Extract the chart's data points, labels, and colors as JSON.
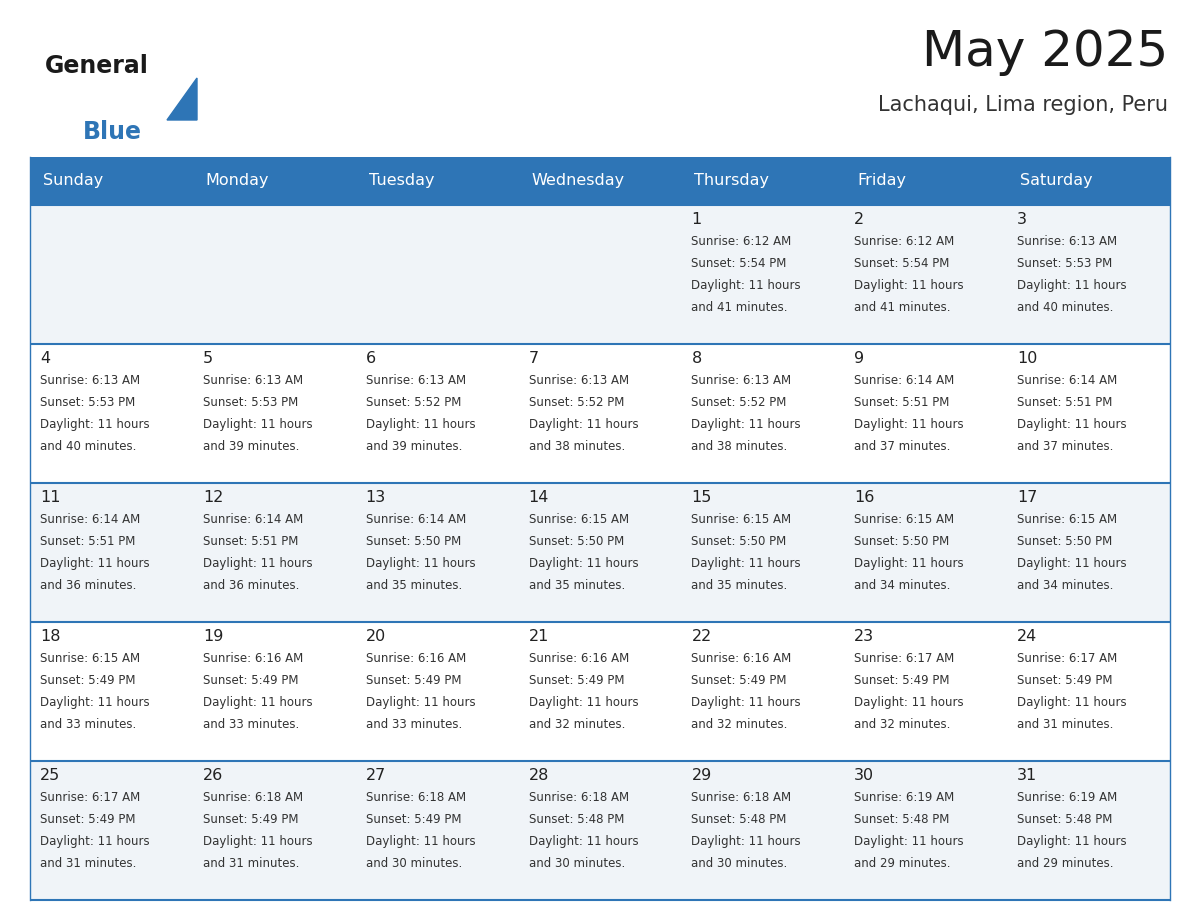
{
  "title": "May 2025",
  "subtitle": "Lachaqui, Lima region, Peru",
  "days_of_week": [
    "Sunday",
    "Monday",
    "Tuesday",
    "Wednesday",
    "Thursday",
    "Friday",
    "Saturday"
  ],
  "header_bg_color": "#2E75B6",
  "header_text_color": "#FFFFFF",
  "cell_bg_even": "#F0F4F8",
  "cell_bg_odd": "#FFFFFF",
  "cell_text_color": "#333333",
  "day_number_color": "#222222",
  "border_color": "#2E75B6",
  "divider_color": "#2E75B6",
  "title_color": "#1a1a1a",
  "subtitle_color": "#333333",
  "calendar": [
    [
      {
        "day": null,
        "sunrise": null,
        "sunset": null,
        "daylight_hours": null,
        "daylight_minutes": null
      },
      {
        "day": null,
        "sunrise": null,
        "sunset": null,
        "daylight_hours": null,
        "daylight_minutes": null
      },
      {
        "day": null,
        "sunrise": null,
        "sunset": null,
        "daylight_hours": null,
        "daylight_minutes": null
      },
      {
        "day": null,
        "sunrise": null,
        "sunset": null,
        "daylight_hours": null,
        "daylight_minutes": null
      },
      {
        "day": 1,
        "sunrise": "6:12 AM",
        "sunset": "5:54 PM",
        "daylight_hours": "11 hours",
        "daylight_minutes": "and 41 minutes."
      },
      {
        "day": 2,
        "sunrise": "6:12 AM",
        "sunset": "5:54 PM",
        "daylight_hours": "11 hours",
        "daylight_minutes": "and 41 minutes."
      },
      {
        "day": 3,
        "sunrise": "6:13 AM",
        "sunset": "5:53 PM",
        "daylight_hours": "11 hours",
        "daylight_minutes": "and 40 minutes."
      }
    ],
    [
      {
        "day": 4,
        "sunrise": "6:13 AM",
        "sunset": "5:53 PM",
        "daylight_hours": "11 hours",
        "daylight_minutes": "and 40 minutes."
      },
      {
        "day": 5,
        "sunrise": "6:13 AM",
        "sunset": "5:53 PM",
        "daylight_hours": "11 hours",
        "daylight_minutes": "and 39 minutes."
      },
      {
        "day": 6,
        "sunrise": "6:13 AM",
        "sunset": "5:52 PM",
        "daylight_hours": "11 hours",
        "daylight_minutes": "and 39 minutes."
      },
      {
        "day": 7,
        "sunrise": "6:13 AM",
        "sunset": "5:52 PM",
        "daylight_hours": "11 hours",
        "daylight_minutes": "and 38 minutes."
      },
      {
        "day": 8,
        "sunrise": "6:13 AM",
        "sunset": "5:52 PM",
        "daylight_hours": "11 hours",
        "daylight_minutes": "and 38 minutes."
      },
      {
        "day": 9,
        "sunrise": "6:14 AM",
        "sunset": "5:51 PM",
        "daylight_hours": "11 hours",
        "daylight_minutes": "and 37 minutes."
      },
      {
        "day": 10,
        "sunrise": "6:14 AM",
        "sunset": "5:51 PM",
        "daylight_hours": "11 hours",
        "daylight_minutes": "and 37 minutes."
      }
    ],
    [
      {
        "day": 11,
        "sunrise": "6:14 AM",
        "sunset": "5:51 PM",
        "daylight_hours": "11 hours",
        "daylight_minutes": "and 36 minutes."
      },
      {
        "day": 12,
        "sunrise": "6:14 AM",
        "sunset": "5:51 PM",
        "daylight_hours": "11 hours",
        "daylight_minutes": "and 36 minutes."
      },
      {
        "day": 13,
        "sunrise": "6:14 AM",
        "sunset": "5:50 PM",
        "daylight_hours": "11 hours",
        "daylight_minutes": "and 35 minutes."
      },
      {
        "day": 14,
        "sunrise": "6:15 AM",
        "sunset": "5:50 PM",
        "daylight_hours": "11 hours",
        "daylight_minutes": "and 35 minutes."
      },
      {
        "day": 15,
        "sunrise": "6:15 AM",
        "sunset": "5:50 PM",
        "daylight_hours": "11 hours",
        "daylight_minutes": "and 35 minutes."
      },
      {
        "day": 16,
        "sunrise": "6:15 AM",
        "sunset": "5:50 PM",
        "daylight_hours": "11 hours",
        "daylight_minutes": "and 34 minutes."
      },
      {
        "day": 17,
        "sunrise": "6:15 AM",
        "sunset": "5:50 PM",
        "daylight_hours": "11 hours",
        "daylight_minutes": "and 34 minutes."
      }
    ],
    [
      {
        "day": 18,
        "sunrise": "6:15 AM",
        "sunset": "5:49 PM",
        "daylight_hours": "11 hours",
        "daylight_minutes": "and 33 minutes."
      },
      {
        "day": 19,
        "sunrise": "6:16 AM",
        "sunset": "5:49 PM",
        "daylight_hours": "11 hours",
        "daylight_minutes": "and 33 minutes."
      },
      {
        "day": 20,
        "sunrise": "6:16 AM",
        "sunset": "5:49 PM",
        "daylight_hours": "11 hours",
        "daylight_minutes": "and 33 minutes."
      },
      {
        "day": 21,
        "sunrise": "6:16 AM",
        "sunset": "5:49 PM",
        "daylight_hours": "11 hours",
        "daylight_minutes": "and 32 minutes."
      },
      {
        "day": 22,
        "sunrise": "6:16 AM",
        "sunset": "5:49 PM",
        "daylight_hours": "11 hours",
        "daylight_minutes": "and 32 minutes."
      },
      {
        "day": 23,
        "sunrise": "6:17 AM",
        "sunset": "5:49 PM",
        "daylight_hours": "11 hours",
        "daylight_minutes": "and 32 minutes."
      },
      {
        "day": 24,
        "sunrise": "6:17 AM",
        "sunset": "5:49 PM",
        "daylight_hours": "11 hours",
        "daylight_minutes": "and 31 minutes."
      }
    ],
    [
      {
        "day": 25,
        "sunrise": "6:17 AM",
        "sunset": "5:49 PM",
        "daylight_hours": "11 hours",
        "daylight_minutes": "and 31 minutes."
      },
      {
        "day": 26,
        "sunrise": "6:18 AM",
        "sunset": "5:49 PM",
        "daylight_hours": "11 hours",
        "daylight_minutes": "and 31 minutes."
      },
      {
        "day": 27,
        "sunrise": "6:18 AM",
        "sunset": "5:49 PM",
        "daylight_hours": "11 hours",
        "daylight_minutes": "and 30 minutes."
      },
      {
        "day": 28,
        "sunrise": "6:18 AM",
        "sunset": "5:48 PM",
        "daylight_hours": "11 hours",
        "daylight_minutes": "and 30 minutes."
      },
      {
        "day": 29,
        "sunrise": "6:18 AM",
        "sunset": "5:48 PM",
        "daylight_hours": "11 hours",
        "daylight_minutes": "and 30 minutes."
      },
      {
        "day": 30,
        "sunrise": "6:19 AM",
        "sunset": "5:48 PM",
        "daylight_hours": "11 hours",
        "daylight_minutes": "and 29 minutes."
      },
      {
        "day": 31,
        "sunrise": "6:19 AM",
        "sunset": "5:48 PM",
        "daylight_hours": "11 hours",
        "daylight_minutes": "and 29 minutes."
      }
    ]
  ],
  "figsize": [
    11.88,
    9.18
  ],
  "dpi": 100
}
